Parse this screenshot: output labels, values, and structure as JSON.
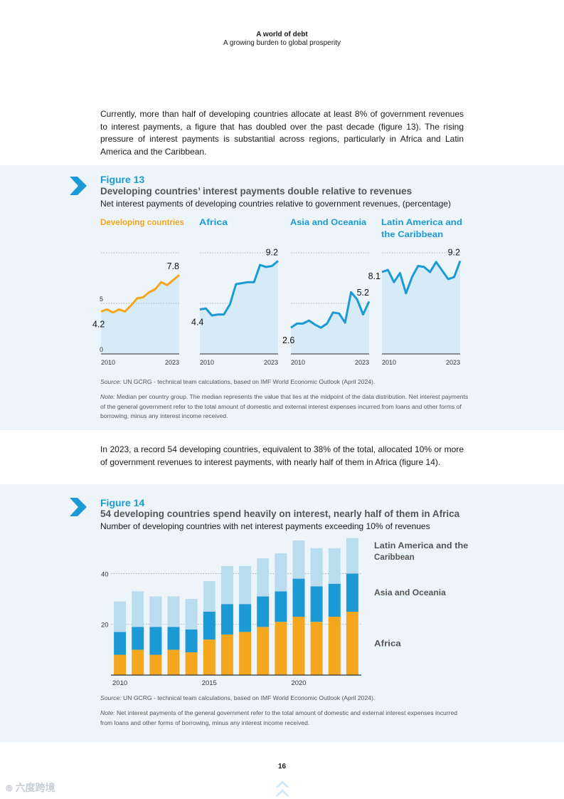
{
  "header": {
    "title": "A world of debt",
    "subtitle": "A growing burden to global prosperity"
  },
  "paragraph1": "Currently, more than half of developing countries allocate at least 8% of government revenues to interest payments, a figure that has doubled over the past decade (figure 13). The rising pressure of interest payments is substantial across regions, particularly in Africa and Latin America and the Caribbean.",
  "paragraph2": "In 2023, a record 54 developing countries, equivalent to 38% of the total, allocated 10% or more of government revenues to interest payments, with nearly half of them in Africa (figure 14).",
  "figure13": {
    "label": "Figure 13",
    "title": "Developing countries’ interest payments double relative to revenues",
    "subtitle": "Net interest payments of developing countries relative to government revenues, (percentage)",
    "source_prefix": "Source:",
    "source": "UN GCRG - technical team calculations, based on IMF World Economic Outlook (April 2024).",
    "note_prefix": "Note:",
    "note": "Median per country group. The median represents the value that lies at the midpoint of the data distribution. Net interest payments of the general government refer to the total amount of domestic and external interest expenses incurred from loans and other forms of borrowing, minus any interest income received."
  },
  "figure14": {
    "label": "Figure 14",
    "title": "54 developing countries spend heavily on interest, nearly half of them in Africa",
    "subtitle": "Number of developing countries with net interest payments exceeding 10% of revenues",
    "source_prefix": "Source:",
    "source": "UN GCRG - technical team calculations, based on IMF World Economic Outlook (April 2024).",
    "note_prefix": "Note:",
    "note": "Net interest payments of the general government refer to the total amount of domestic and external interest expenses incurred from loans and other forms of borrowing, minus any interest income received."
  },
  "page_number": "16",
  "watermark": "六度跨境",
  "colors": {
    "accent": "#1b9ad6",
    "orange": "#f4a71d",
    "light_blue": "#b9dcee",
    "area_fill": "#d6ebf7",
    "panel_bg": "#eef5fa"
  },
  "chart_data": [
    {
      "type": "line",
      "id": "fig13",
      "title": "Developing countries’ interest payments double relative to revenues",
      "ylabel": "percentage",
      "ylim": [
        0,
        10
      ],
      "yticks": [
        0,
        5
      ],
      "x_tick_labels": [
        "2010",
        "2023"
      ],
      "x": [
        2010,
        2011,
        2012,
        2013,
        2014,
        2015,
        2016,
        2017,
        2018,
        2019,
        2020,
        2021,
        2022,
        2023
      ],
      "panels": [
        {
          "name": "Developing countries",
          "color": "#f4a71d",
          "values": [
            4.2,
            4.4,
            4.1,
            4.4,
            4.2,
            4.8,
            5.5,
            5.6,
            6.1,
            6.4,
            7.1,
            6.8,
            7.3,
            7.8
          ],
          "start_label": "4.2",
          "end_label": "7.8"
        },
        {
          "name": "Africa",
          "color": "#1b9ad6",
          "values": [
            4.4,
            4.5,
            3.8,
            3.9,
            3.9,
            4.9,
            6.9,
            7.0,
            7.1,
            7.1,
            8.8,
            8.6,
            8.7,
            9.2
          ],
          "start_label": "4.4",
          "end_label": "9.2"
        },
        {
          "name": "Asia and Oceania",
          "color": "#1b9ad6",
          "values": [
            2.6,
            3.0,
            3.0,
            3.3,
            2.9,
            2.6,
            3.0,
            4.1,
            4.0,
            3.1,
            6.1,
            5.4,
            3.9,
            5.2
          ],
          "start_label": "2.6",
          "end_label": "5.2"
        },
        {
          "name": "Latin America and the Caribbean",
          "name_lines": [
            "Latin America and",
            "the Caribbean"
          ],
          "color": "#1b9ad6",
          "values": [
            8.1,
            8.3,
            7.1,
            8.0,
            6.0,
            7.6,
            8.7,
            8.6,
            8.1,
            9.1,
            7.4,
            7.6,
            9.2
          ],
          "x": [
            2010,
            2011,
            2012,
            2013,
            2014,
            2015,
            2016,
            2017,
            2018,
            2019,
            2021,
            2022,
            2023
          ],
          "start_label": "8.1",
          "end_label": "9.2"
        }
      ]
    },
    {
      "type": "bar",
      "id": "fig14",
      "stacked": true,
      "title": "54 developing countries spend heavily on interest, nearly half of them in Africa",
      "ylabel": "Number of developing countries",
      "ylim": [
        0,
        55
      ],
      "yticks": [
        20,
        40
      ],
      "categories": [
        2010,
        2011,
        2012,
        2013,
        2014,
        2015,
        2016,
        2017,
        2018,
        2019,
        2020,
        2021,
        2022,
        2023
      ],
      "x_tick_labels": [
        "2010",
        "2015",
        "2020"
      ],
      "series": [
        {
          "name": "Africa",
          "color": "#f4a71d",
          "values": [
            8,
            10,
            8,
            10,
            9,
            14,
            16,
            17,
            19,
            21,
            23,
            21,
            23,
            25
          ]
        },
        {
          "name": "Asia and Oceania",
          "color": "#1b9ad6",
          "values": [
            9,
            9,
            11,
            9,
            9,
            11,
            12,
            11,
            12,
            12,
            15,
            14,
            13,
            15
          ]
        },
        {
          "name": "Latin America and the Caribbean",
          "color": "#b9dcee",
          "values": [
            12,
            14,
            12,
            12,
            12,
            12,
            15,
            15,
            15,
            15,
            15,
            15,
            14,
            14
          ]
        }
      ],
      "legend_lines": [
        [
          "Latin America and the",
          "Caribbean"
        ],
        [
          "Asia and Oceania"
        ],
        [
          "Africa"
        ]
      ]
    }
  ]
}
